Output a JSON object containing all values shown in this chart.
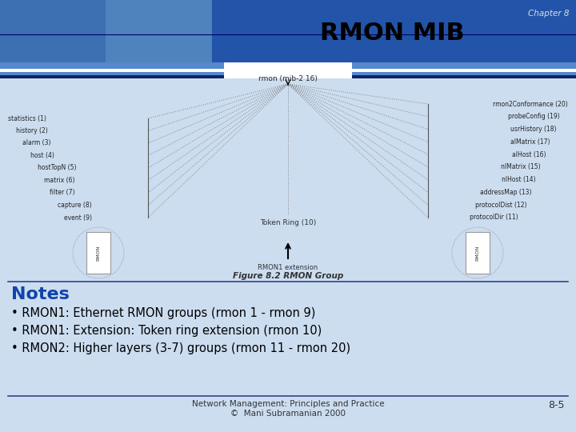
{
  "title": "RMON MIB",
  "chapter": "Chapter 8",
  "notes_title": "Notes",
  "bullet_points": [
    "RMON1: Ethernet RMON groups (rmon 1 - rmon 9)",
    "RMON1: Extension: Token ring extension (rmon 10)",
    "RMON2: Higher layers (3-7) groups (rmon 11 - rmon 20)"
  ],
  "footer_left": "Network Management: Principles and Practice\n©  Mani Subramanian 2000",
  "footer_right": "8-5",
  "header_bg": "#2255aa",
  "header_img_bg": "#4a7fc0",
  "stripe_light": "#6699cc",
  "stripe_dark": "#112266",
  "title_color": "#000000",
  "chapter_color": "#dddddd",
  "notes_color": "#1144aa",
  "bullet_color": "#000000",
  "slide_bg": "#ccddf0",
  "diagram_bg": "#ffffff",
  "left_labels": [
    "statistics (1)",
    "history (2)",
    "alarm (3)",
    "host (4)",
    "hostTopN (5)",
    "matrix (6)",
    "filter (7)",
    "capture (8)",
    "event (9)"
  ],
  "right_labels": [
    "rmon2Conformance (20)",
    "probeConfig (19)",
    "usrHistory (18)",
    "alMatrix (17)",
    "alHost (16)",
    "nlMatrix (15)",
    "nlHost (14)",
    "addressMap (13)",
    "protocolDist (12)",
    "protocolDir (11)"
  ],
  "root_label": "rmon (mib-2 16)",
  "token_ring_label": "Token Ring (10)",
  "extension_label": "RMON1 extension",
  "figure_caption": "Figure 8.2 RMON Group"
}
